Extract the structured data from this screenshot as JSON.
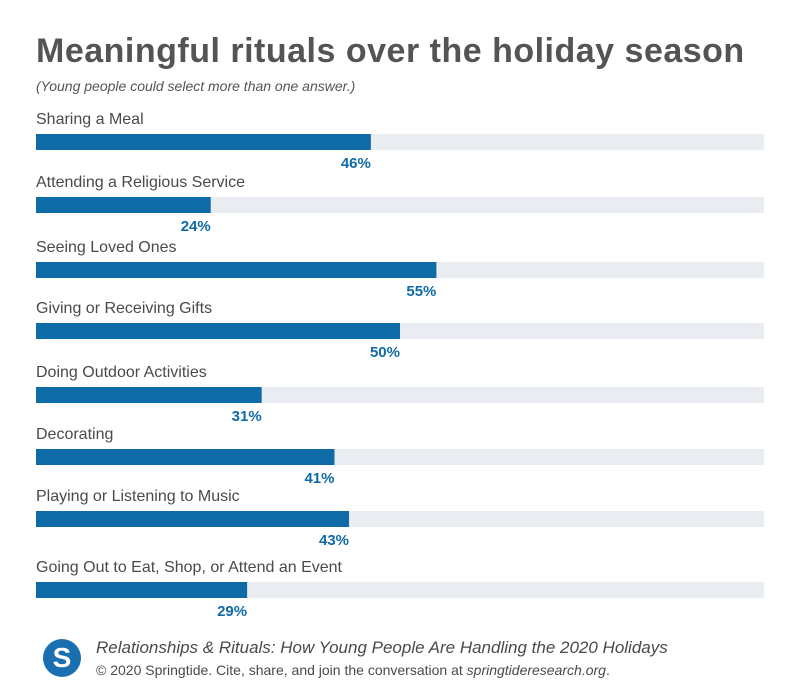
{
  "chart_data": {
    "type": "bar",
    "orientation": "horizontal",
    "title": "Meaningful rituals over the holiday season",
    "subtitle": "(Young people could select more than one answer.)",
    "categories": [
      "Sharing a Meal",
      "Attending a Religious Service",
      "Seeing Loved Ones",
      "Giving or Receiving Gifts",
      "Doing Outdoor Activities",
      "Decorating",
      "Playing or Listening to Music",
      "Going Out to Eat, Shop, or Attend an Event"
    ],
    "values": [
      46,
      24,
      55,
      50,
      31,
      41,
      43,
      29
    ],
    "value_labels": [
      "46%",
      "24%",
      "55%",
      "50%",
      "31%",
      "41%",
      "43%",
      "29%"
    ],
    "xlim": [
      0,
      100
    ],
    "grid": false,
    "legend": "none",
    "colors": {
      "bar": "#0f6aa8",
      "track": "#e9edf2",
      "value_label": "#0f6aa8",
      "category_label": "#4a4a4a"
    }
  },
  "footer": {
    "title": "Relationships & Rituals: How Young People Are Handling the 2020 Holidays",
    "credit_prefix": "© 2020 Springtide. Cite, share, and join the conversation at ",
    "credit_link": "springtideresearch.org",
    "credit_suffix": "."
  },
  "logo": {
    "letter": "S",
    "color": "#1a6fb0",
    "name": "springtide-logo-icon"
  }
}
